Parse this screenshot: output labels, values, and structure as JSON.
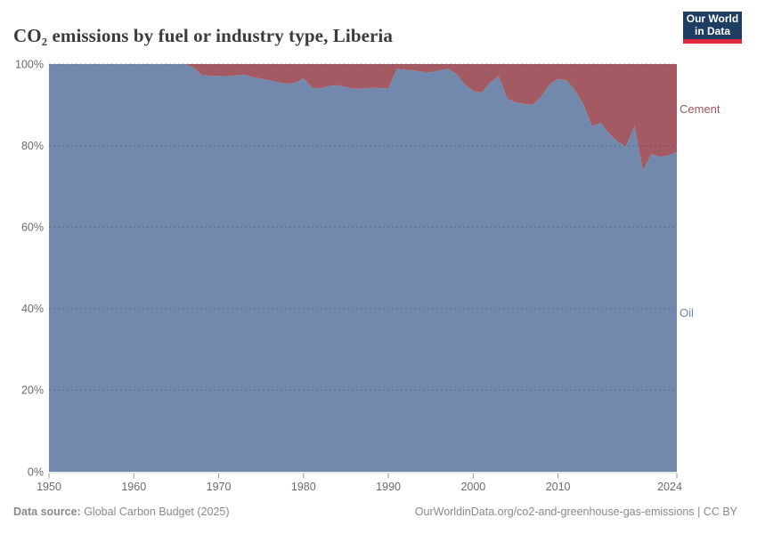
{
  "header": {
    "title": "CO₂ emissions by fuel or industry type, Liberia",
    "logo": {
      "text": "Our World\nin Data",
      "bg_color": "#1d3d63",
      "bar_color": "#e0293c"
    }
  },
  "chart_data": {
    "type": "area",
    "stacked": true,
    "percent_scale": true,
    "title": "CO₂ emissions by fuel or industry type, Liberia",
    "xlabel": "",
    "ylabel": "",
    "xlim": [
      1950,
      2024
    ],
    "ylim": [
      0,
      100
    ],
    "grid": "dotted horizontal, every 20%",
    "legend_position": "right edge, inline labels",
    "x": [
      1950,
      1951,
      1952,
      1953,
      1954,
      1955,
      1956,
      1957,
      1958,
      1959,
      1960,
      1961,
      1962,
      1963,
      1964,
      1965,
      1966,
      1967,
      1968,
      1969,
      1970,
      1971,
      1972,
      1973,
      1974,
      1975,
      1976,
      1977,
      1978,
      1979,
      1980,
      1981,
      1982,
      1983,
      1984,
      1985,
      1986,
      1987,
      1988,
      1989,
      1990,
      1991,
      1992,
      1993,
      1994,
      1995,
      1996,
      1997,
      1998,
      1999,
      2000,
      2001,
      2002,
      2003,
      2004,
      2005,
      2006,
      2007,
      2008,
      2009,
      2010,
      2011,
      2012,
      2013,
      2014,
      2015,
      2016,
      2017,
      2018,
      2019,
      2020,
      2021,
      2022,
      2023,
      2024
    ],
    "series": [
      {
        "name": "Oil",
        "color": "#7289ad",
        "unit": "% of emissions",
        "values": [
          100,
          100,
          100,
          100,
          100,
          100,
          100,
          100,
          100,
          100,
          100,
          100,
          100,
          100,
          100,
          100,
          100,
          99.2,
          97.3,
          97.1,
          97.1,
          97.0,
          97.2,
          97.4,
          96.8,
          96.4,
          96.0,
          95.5,
          95.2,
          95.4,
          96.5,
          94.2,
          94.0,
          94.6,
          94.8,
          94.3,
          93.9,
          94.0,
          94.2,
          94.1,
          94.0,
          98.8,
          98.6,
          98.4,
          98.1,
          98.0,
          98.4,
          98.8,
          97.6,
          95.0,
          93.4,
          93.0,
          95.5,
          97.0,
          91.5,
          90.6,
          90.2,
          90.0,
          92.0,
          95.0,
          96.3,
          96.0,
          93.5,
          90.0,
          84.7,
          85.6,
          83.0,
          81.0,
          79.7,
          84.8,
          73.8,
          77.9,
          77.2,
          77.6,
          78.4
        ]
      },
      {
        "name": "Cement",
        "color": "#a45a62",
        "unit": "% of emissions",
        "values": [
          0,
          0,
          0,
          0,
          0,
          0,
          0,
          0,
          0,
          0,
          0,
          0,
          0,
          0,
          0,
          0,
          0,
          0.8,
          2.7,
          2.9,
          2.9,
          3.0,
          2.8,
          2.6,
          3.2,
          3.6,
          4.0,
          4.5,
          4.8,
          4.6,
          3.5,
          5.8,
          6.0,
          5.4,
          5.2,
          5.7,
          6.1,
          6.0,
          5.8,
          5.9,
          6.0,
          1.2,
          1.4,
          1.6,
          1.9,
          2.0,
          1.6,
          1.2,
          2.4,
          5.0,
          6.6,
          7.0,
          4.5,
          3.0,
          8.5,
          9.4,
          9.8,
          10.0,
          8.0,
          5.0,
          3.7,
          4.0,
          6.5,
          10.0,
          15.3,
          14.4,
          17.0,
          19.0,
          20.3,
          15.2,
          26.2,
          22.1,
          22.8,
          22.4,
          21.6
        ]
      }
    ],
    "xticks": [
      1950,
      1960,
      1970,
      1980,
      1990,
      2000,
      2010,
      2024
    ],
    "yticks": [
      "0%",
      "20%",
      "40%",
      "60%",
      "80%",
      "100%"
    ]
  },
  "labels": {
    "cement": "Cement",
    "oil": "Oil"
  },
  "footer": {
    "source_label": "Data source:",
    "source_text": " Global Carbon Budget (2025)",
    "link": "OurWorldinData.org/co2-and-greenhouse-gas-emissions",
    "license_suffix": " | CC BY"
  },
  "colors": {
    "oil_fill": "#7289ad",
    "cement_fill": "#a45a62",
    "oil_label": "#6d84b0",
    "cement_label": "#a2545e",
    "axis_text": "#6b6b6b",
    "gridline": "#2f3f50",
    "logo_bg": "#1d3d63",
    "logo_bar": "#e0293c"
  }
}
